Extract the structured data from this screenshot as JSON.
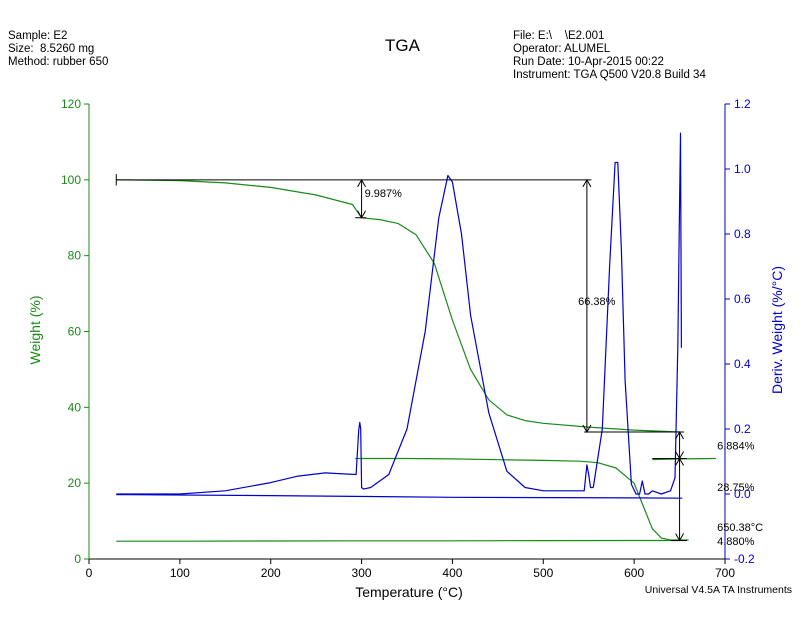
{
  "header": {
    "sample": "Sample: E2",
    "size": "Size:  8.5260 mg",
    "method": "Method: rubber 650",
    "file": "File: E:\\    \\E2.001",
    "operator": "Operator: ALUMEL",
    "run_date": "Run Date: 10-Apr-2015 00:22",
    "instrument": "Instrument: TGA Q500 V20.8 Build 34"
  },
  "footer": "Universal V4.5A TA Instruments",
  "colors": {
    "weight": "#1a8a1a",
    "deriv": "#0000cc",
    "axis": "#000000"
  },
  "chart_data": {
    "type": "line",
    "title": "TGA",
    "xlabel": "Temperature (°C)",
    "ylabel_left": "Weight (%)",
    "ylabel_right": "Deriv. Weight (%/°C)",
    "xlim": [
      0,
      700
    ],
    "ylim_left": [
      0,
      120
    ],
    "ylim_right": [
      -0.2,
      1.2
    ],
    "x_ticks": [
      0,
      100,
      200,
      300,
      400,
      500,
      600,
      700
    ],
    "y_left_ticks": [
      0,
      20,
      40,
      60,
      80,
      100,
      120
    ],
    "y_right_ticks": [
      "-0.2",
      "0.0",
      "0.2",
      "0.4",
      "0.6",
      "0.8",
      "1.0",
      "1.2"
    ],
    "series": [
      {
        "axis": "left",
        "color": "#1a8a1a",
        "x": [
          30,
          100,
          150,
          200,
          250,
          290,
          300,
          320,
          340,
          360,
          380,
          400,
          420,
          440,
          460,
          480,
          500,
          550,
          600,
          650
        ],
        "y": [
          100,
          99.8,
          99.2,
          98.0,
          96.0,
          93.5,
          90.0,
          89.5,
          88.5,
          85.5,
          78.0,
          63.0,
          50.0,
          42.0,
          38.0,
          36.5,
          35.8,
          34.8,
          34.0,
          33.5
        ]
      },
      {
        "axis": "left",
        "color": "#1a8a1a",
        "x": [
          293,
          350,
          400,
          450,
          500,
          540,
          560,
          580,
          600,
          610,
          620,
          630,
          640,
          660
        ],
        "y": [
          26.5,
          26.5,
          26.4,
          26.2,
          26.0,
          25.8,
          25.4,
          24.0,
          20.0,
          14.0,
          8.0,
          5.5,
          5.0,
          5.0
        ]
      },
      {
        "axis": "left",
        "color": "#1a8a1a",
        "x": [
          30,
          100,
          200,
          300,
          400,
          500,
          600,
          650
        ],
        "y": [
          4.7,
          4.7,
          4.75,
          4.8,
          4.8,
          4.85,
          4.88,
          4.88
        ]
      },
      {
        "axis": "left",
        "color": "#1a8a1a",
        "x": [
          620,
          650,
          690
        ],
        "y": [
          26.2,
          26.4,
          26.5
        ]
      },
      {
        "axis": "right",
        "color": "#0000cc",
        "x": [
          30,
          100,
          150,
          200,
          230,
          260,
          280,
          294,
          297,
          298,
          299,
          300,
          302,
          310,
          330,
          350,
          370,
          385,
          395,
          400,
          410,
          420,
          440,
          460,
          480,
          500,
          530,
          545,
          548,
          550,
          552,
          555
        ],
        "y": [
          0.0,
          0.0,
          0.01,
          0.035,
          0.055,
          0.065,
          0.062,
          0.06,
          0.2,
          0.22,
          0.2,
          0.02,
          0.015,
          0.02,
          0.06,
          0.2,
          0.5,
          0.85,
          0.98,
          0.96,
          0.8,
          0.55,
          0.25,
          0.07,
          0.02,
          0.01,
          0.01,
          0.01,
          0.09,
          0.06,
          0.02,
          0.02
        ]
      },
      {
        "axis": "right",
        "color": "#0000cc",
        "x": [
          555,
          565,
          573,
          579,
          582,
          586,
          590,
          597,
          602,
          606,
          609,
          612,
          616,
          620,
          630,
          640,
          645,
          648,
          650,
          651,
          652
        ],
        "y": [
          0.02,
          0.2,
          0.7,
          1.02,
          1.02,
          0.75,
          0.35,
          0.03,
          0.0,
          0.0,
          0.04,
          0.0,
          0.0,
          0.01,
          0.0,
          0.01,
          0.05,
          0.45,
          0.9,
          1.11,
          0.45
        ]
      },
      {
        "axis": "right",
        "color": "#0000cc",
        "x": [
          30,
          200,
          400,
          600,
          653
        ],
        "y": [
          -0.002,
          -0.005,
          -0.01,
          -0.012,
          -0.013
        ]
      }
    ],
    "annotations": [
      {
        "label": "9.987%",
        "x": 300,
        "y": 96.5
      },
      {
        "label": "66.38%",
        "x": 535,
        "y": 68
      },
      {
        "label": "6.884%",
        "x": 688,
        "y": 30
      },
      {
        "label": "28.75%",
        "x": 688,
        "y": 19
      },
      {
        "label": "650.38°C",
        "x": 688,
        "y": 8.5
      },
      {
        "label": "4.880%",
        "x": 688,
        "y": 4.7
      }
    ],
    "grid": false,
    "legend": "none"
  }
}
